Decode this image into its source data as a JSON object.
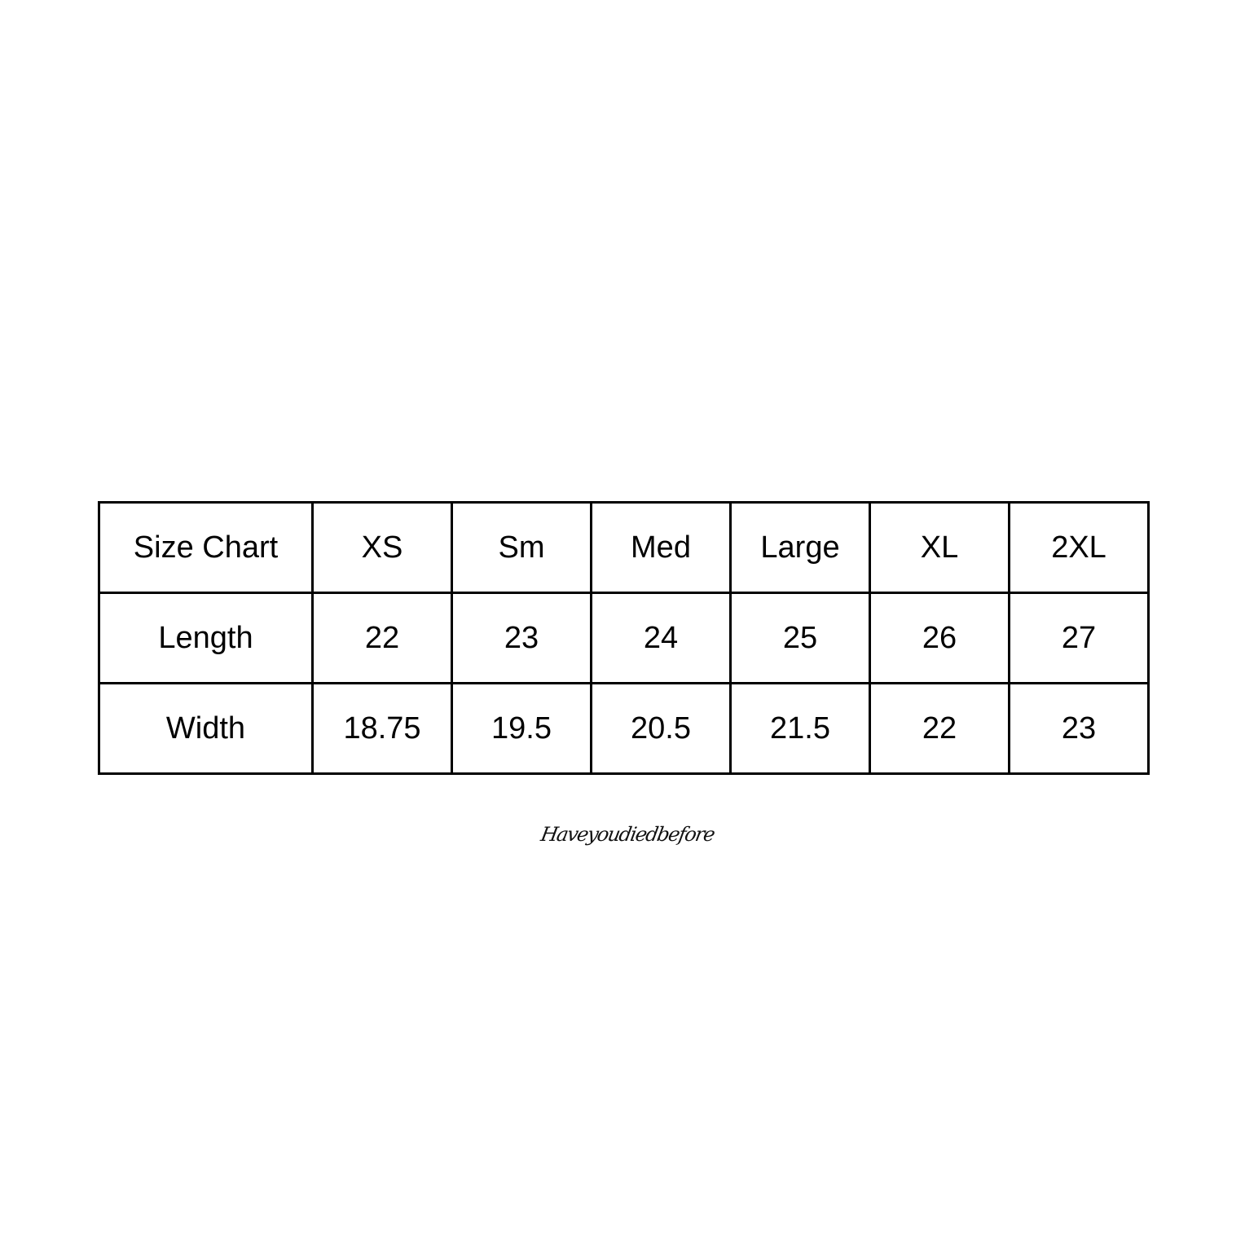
{
  "chart_data": {
    "type": "table",
    "header": [
      "Size Chart",
      "XS",
      "Sm",
      "Med",
      "Large",
      "XL",
      "2XL"
    ],
    "rows": [
      [
        "Length",
        "22",
        "23",
        "24",
        "25",
        "26",
        "27"
      ],
      [
        "Width",
        "18.75",
        "19.5",
        "20.5",
        "21.5",
        "22",
        "23"
      ]
    ]
  },
  "signature": "Haveyoudiedbefore"
}
